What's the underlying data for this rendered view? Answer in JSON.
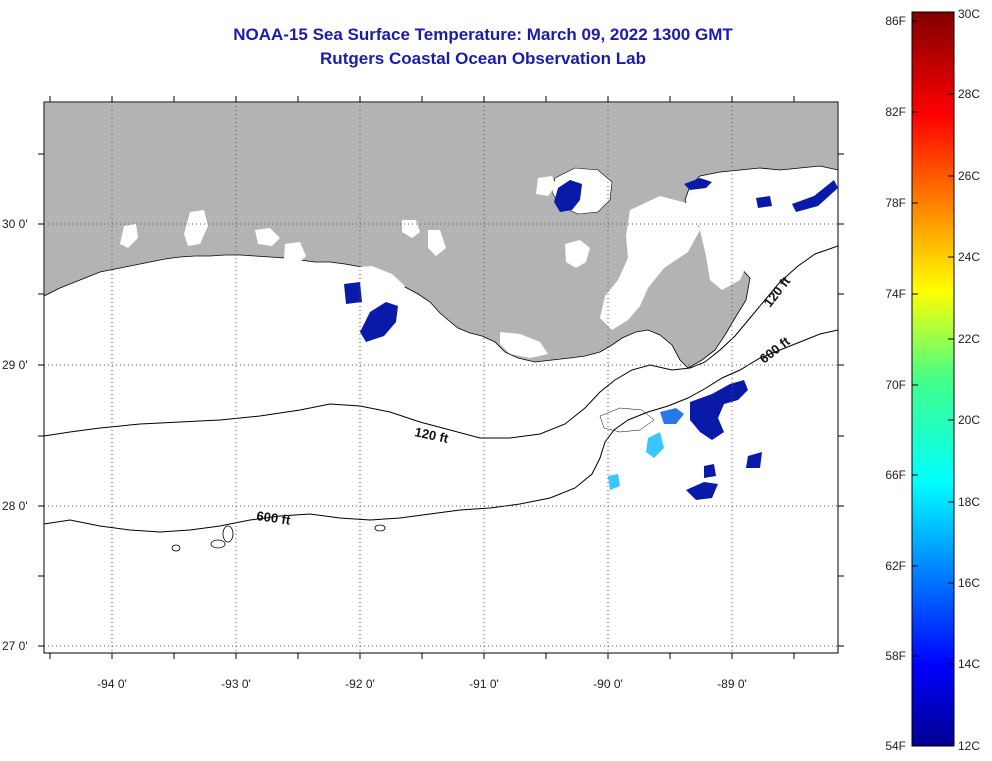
{
  "header": {
    "title": "NOAA-15 Sea Surface Temperature:  March 09, 2022 1300 GMT",
    "subtitle": "Rutgers Coastal Ocean Observation Lab"
  },
  "map": {
    "lon_labels": [
      "-94 0'",
      "-93 0'",
      "-92 0'",
      "-91 0'",
      "-90 0'",
      "-89 0'"
    ],
    "lat_labels": [
      "30 0'",
      "29 0'",
      "28 0'",
      "27 0'"
    ],
    "contours": [
      {
        "name": "120 ft",
        "label": "120 ft"
      },
      {
        "name": "600 ft",
        "label": "600 ft"
      },
      {
        "name": "120 ft east",
        "label": "120 ft"
      },
      {
        "name": "600 ft east",
        "label": "600 ft"
      }
    ],
    "colors": {
      "land": "#b3b3b3",
      "cloud": "#ffffff",
      "cold_water": "#0a1aa8"
    }
  },
  "colorbar": {
    "f_labels": [
      "86F",
      "82F",
      "78F",
      "74F",
      "70F",
      "66F",
      "62F",
      "58F",
      "54F"
    ],
    "c_labels": [
      "30C",
      "28C",
      "26C",
      "24C",
      "22C",
      "20C",
      "18C",
      "16C",
      "14C",
      "12C"
    ]
  }
}
